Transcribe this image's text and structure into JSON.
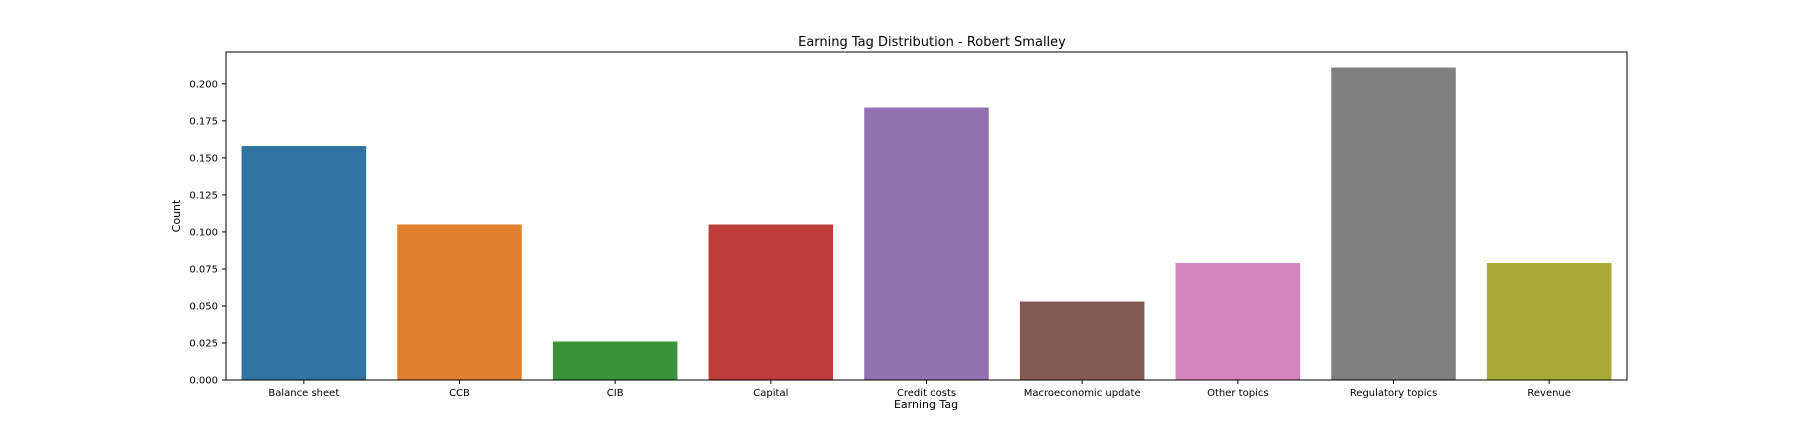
{
  "chart_data": {
    "type": "bar",
    "title": "Earning Tag Distribution - Robert Smalley",
    "xlabel": "Earning Tag",
    "ylabel": "Count",
    "categories": [
      "Balance sheet",
      "CCB",
      "CIB",
      "Capital",
      "Credit costs",
      "Macroeconomic update",
      "Other topics",
      "Regulatory topics",
      "Revenue"
    ],
    "values": [
      0.158,
      0.105,
      0.026,
      0.105,
      0.184,
      0.053,
      0.079,
      0.211,
      0.079
    ],
    "colors": [
      "#3274a1",
      "#e1812c",
      "#3a923a",
      "#c03d3e",
      "#9372b2",
      "#845b53",
      "#d684bd",
      "#7f7f7f",
      "#a9aa35"
    ],
    "ylim": [
      0,
      0.2215
    ],
    "yticks": [
      0.0,
      0.025,
      0.05,
      0.075,
      0.1,
      0.125,
      0.15,
      0.175,
      0.2
    ],
    "ytick_labels": [
      "0.000",
      "0.025",
      "0.050",
      "0.075",
      "0.100",
      "0.125",
      "0.150",
      "0.175",
      "0.200"
    ],
    "grid": false,
    "legend": "none"
  }
}
